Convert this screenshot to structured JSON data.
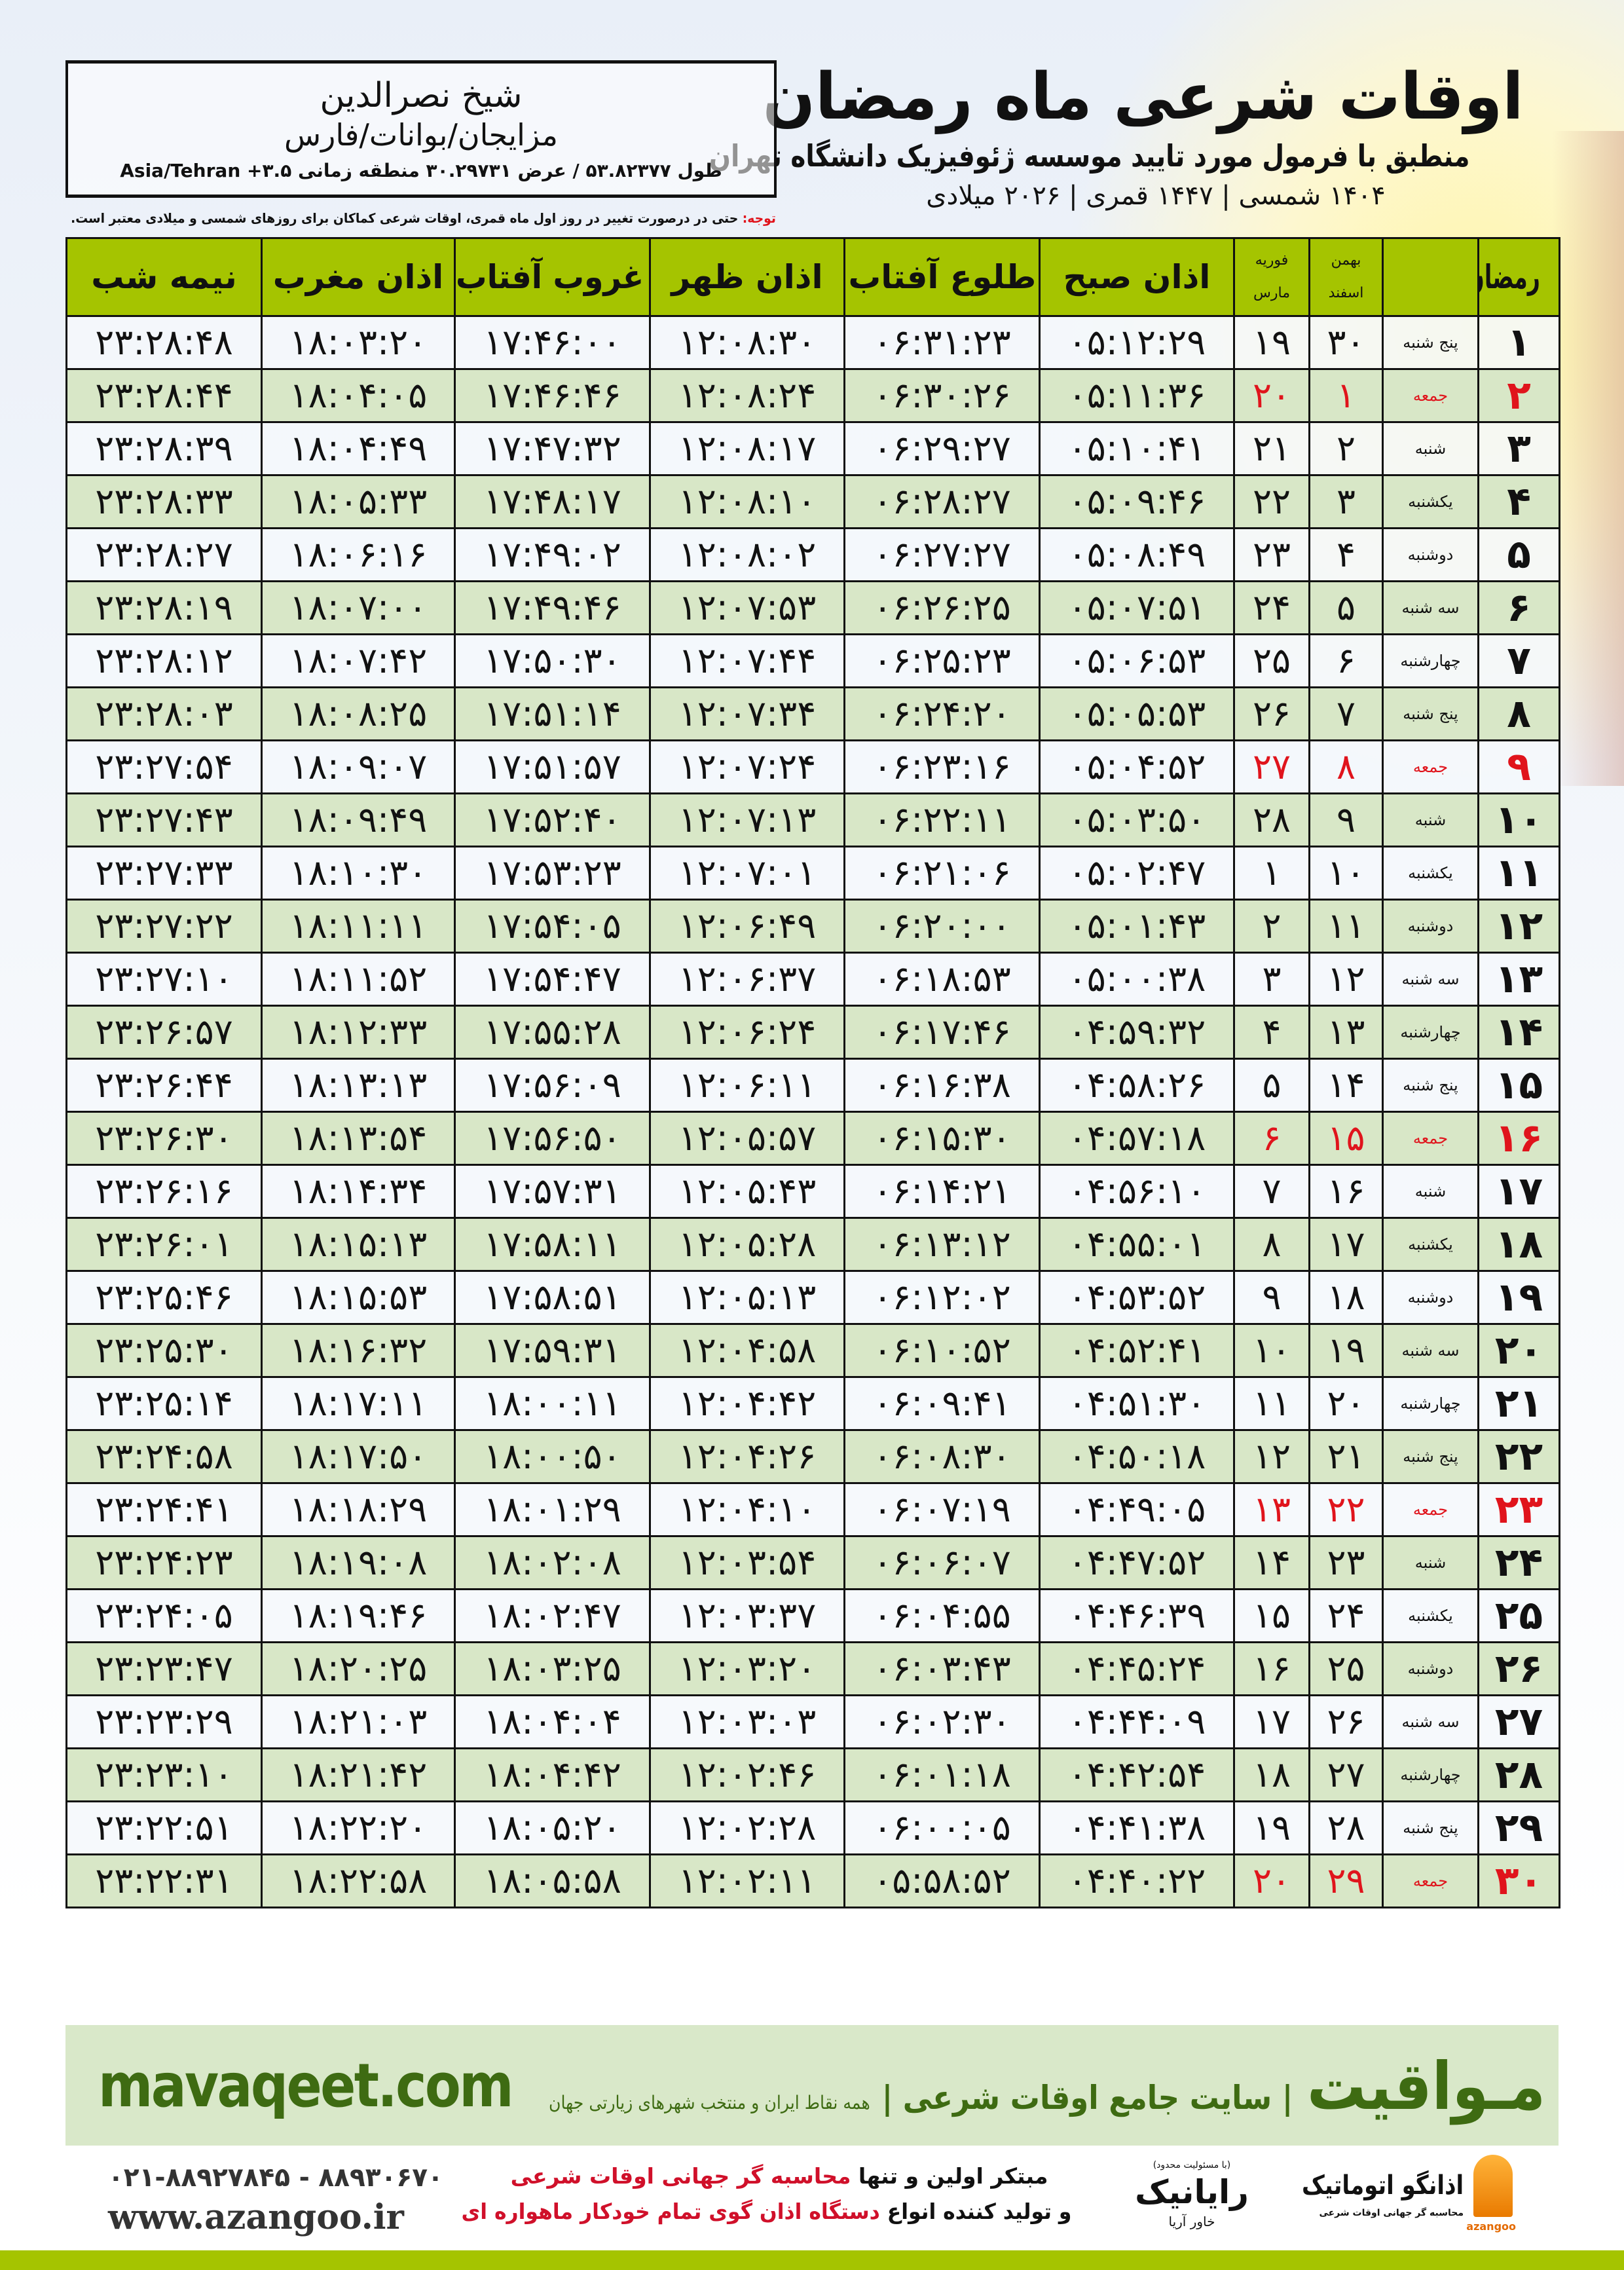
{
  "header": {
    "title": "اوقات شرعی ماه رمضان",
    "subtitle": "منطبق با فرمول مورد تایید موسسه ژئوفیزیک دانشگاه تهران",
    "dates": "۱۴۰۴ شمسی | ۱۴۴۷ قمری | ۲۰۲۶ میلادی"
  },
  "location": {
    "name": "شیخ نصرالدین",
    "region": "مزایجان/بوانات/فارس",
    "coords": "طول ۵۳.۸۲۳۷۷ / عرض ۳۰.۲۹۷۳۱ منطقه زمانی ۳.۵+ Asia/Tehran"
  },
  "note": {
    "label": "توجه:",
    "text": " حتی در درصورت تغییر در روز اول ماه قمری، اوقات شرعی کماکان برای روزهای شمسی و میلادی معتبر است."
  },
  "table": {
    "headers": {
      "ramadan": "رمضان",
      "shamsi_top": "بهمن",
      "shamsi_bottom": "اسفند",
      "miladi_top": "فوریه",
      "miladi_bottom": "مارس",
      "sobh": "اذان صبح",
      "tolu": "طلوع آفتاب",
      "zohr": "اذان ظهر",
      "ghorub": "غروب آفتاب",
      "maghrib": "اذان مغرب",
      "nime": "نیمه شب"
    },
    "holiday_color": "#e0141c",
    "rows": [
      [
        "۱",
        "پنج شنبه",
        "۳۰",
        "۱۹",
        "۰۵:۱۲:۲۹",
        "۰۶:۳۱:۲۳",
        "۱۲:۰۸:۳۰",
        "۱۷:۴۶:۰۰",
        "۱۸:۰۳:۲۰",
        "۲۳:۲۸:۴۸",
        false
      ],
      [
        "۲",
        "جمعه",
        "۱",
        "۲۰",
        "۰۵:۱۱:۳۶",
        "۰۶:۳۰:۲۶",
        "۱۲:۰۸:۲۴",
        "۱۷:۴۶:۴۶",
        "۱۸:۰۴:۰۵",
        "۲۳:۲۸:۴۴",
        true
      ],
      [
        "۳",
        "شنبه",
        "۲",
        "۲۱",
        "۰۵:۱۰:۴۱",
        "۰۶:۲۹:۲۷",
        "۱۲:۰۸:۱۷",
        "۱۷:۴۷:۳۲",
        "۱۸:۰۴:۴۹",
        "۲۳:۲۸:۳۹",
        false
      ],
      [
        "۴",
        "یکشنبه",
        "۳",
        "۲۲",
        "۰۵:۰۹:۴۶",
        "۰۶:۲۸:۲۷",
        "۱۲:۰۸:۱۰",
        "۱۷:۴۸:۱۷",
        "۱۸:۰۵:۳۳",
        "۲۳:۲۸:۳۳",
        false
      ],
      [
        "۵",
        "دوشنبه",
        "۴",
        "۲۳",
        "۰۵:۰۸:۴۹",
        "۰۶:۲۷:۲۷",
        "۱۲:۰۸:۰۲",
        "۱۷:۴۹:۰۲",
        "۱۸:۰۶:۱۶",
        "۲۳:۲۸:۲۷",
        false
      ],
      [
        "۶",
        "سه شنبه",
        "۵",
        "۲۴",
        "۰۵:۰۷:۵۱",
        "۰۶:۲۶:۲۵",
        "۱۲:۰۷:۵۳",
        "۱۷:۴۹:۴۶",
        "۱۸:۰۷:۰۰",
        "۲۳:۲۸:۱۹",
        false
      ],
      [
        "۷",
        "چهارشنبه",
        "۶",
        "۲۵",
        "۰۵:۰۶:۵۳",
        "۰۶:۲۵:۲۳",
        "۱۲:۰۷:۴۴",
        "۱۷:۵۰:۳۰",
        "۱۸:۰۷:۴۲",
        "۲۳:۲۸:۱۲",
        false
      ],
      [
        "۸",
        "پنج شنبه",
        "۷",
        "۲۶",
        "۰۵:۰۵:۵۳",
        "۰۶:۲۴:۲۰",
        "۱۲:۰۷:۳۴",
        "۱۷:۵۱:۱۴",
        "۱۸:۰۸:۲۵",
        "۲۳:۲۸:۰۳",
        false
      ],
      [
        "۹",
        "جمعه",
        "۸",
        "۲۷",
        "۰۵:۰۴:۵۲",
        "۰۶:۲۳:۱۶",
        "۱۲:۰۷:۲۴",
        "۱۷:۵۱:۵۷",
        "۱۸:۰۹:۰۷",
        "۲۳:۲۷:۵۴",
        true
      ],
      [
        "۱۰",
        "شنبه",
        "۹",
        "۲۸",
        "۰۵:۰۳:۵۰",
        "۰۶:۲۲:۱۱",
        "۱۲:۰۷:۱۳",
        "۱۷:۵۲:۴۰",
        "۱۸:۰۹:۴۹",
        "۲۳:۲۷:۴۳",
        false
      ],
      [
        "۱۱",
        "یکشنبه",
        "۱۰",
        "۱",
        "۰۵:۰۲:۴۷",
        "۰۶:۲۱:۰۶",
        "۱۲:۰۷:۰۱",
        "۱۷:۵۳:۲۳",
        "۱۸:۱۰:۳۰",
        "۲۳:۲۷:۳۳",
        false
      ],
      [
        "۱۲",
        "دوشنبه",
        "۱۱",
        "۲",
        "۰۵:۰۱:۴۳",
        "۰۶:۲۰:۰۰",
        "۱۲:۰۶:۴۹",
        "۱۷:۵۴:۰۵",
        "۱۸:۱۱:۱۱",
        "۲۳:۲۷:۲۲",
        false
      ],
      [
        "۱۳",
        "سه شنبه",
        "۱۲",
        "۳",
        "۰۵:۰۰:۳۸",
        "۰۶:۱۸:۵۳",
        "۱۲:۰۶:۳۷",
        "۱۷:۵۴:۴۷",
        "۱۸:۱۱:۵۲",
        "۲۳:۲۷:۱۰",
        false
      ],
      [
        "۱۴",
        "چهارشنبه",
        "۱۳",
        "۴",
        "۰۴:۵۹:۳۲",
        "۰۶:۱۷:۴۶",
        "۱۲:۰۶:۲۴",
        "۱۷:۵۵:۲۸",
        "۱۸:۱۲:۳۳",
        "۲۳:۲۶:۵۷",
        false
      ],
      [
        "۱۵",
        "پنج شنبه",
        "۱۴",
        "۵",
        "۰۴:۵۸:۲۶",
        "۰۶:۱۶:۳۸",
        "۱۲:۰۶:۱۱",
        "۱۷:۵۶:۰۹",
        "۱۸:۱۳:۱۳",
        "۲۳:۲۶:۴۴",
        false
      ],
      [
        "۱۶",
        "جمعه",
        "۱۵",
        "۶",
        "۰۴:۵۷:۱۸",
        "۰۶:۱۵:۳۰",
        "۱۲:۰۵:۵۷",
        "۱۷:۵۶:۵۰",
        "۱۸:۱۳:۵۴",
        "۲۳:۲۶:۳۰",
        true
      ],
      [
        "۱۷",
        "شنبه",
        "۱۶",
        "۷",
        "۰۴:۵۶:۱۰",
        "۰۶:۱۴:۲۱",
        "۱۲:۰۵:۴۳",
        "۱۷:۵۷:۳۱",
        "۱۸:۱۴:۳۴",
        "۲۳:۲۶:۱۶",
        false
      ],
      [
        "۱۸",
        "یکشنبه",
        "۱۷",
        "۸",
        "۰۴:۵۵:۰۱",
        "۰۶:۱۳:۱۲",
        "۱۲:۰۵:۲۸",
        "۱۷:۵۸:۱۱",
        "۱۸:۱۵:۱۳",
        "۲۳:۲۶:۰۱",
        false
      ],
      [
        "۱۹",
        "دوشنبه",
        "۱۸",
        "۹",
        "۰۴:۵۳:۵۲",
        "۰۶:۱۲:۰۲",
        "۱۲:۰۵:۱۳",
        "۱۷:۵۸:۵۱",
        "۱۸:۱۵:۵۳",
        "۲۳:۲۵:۴۶",
        false
      ],
      [
        "۲۰",
        "سه شنبه",
        "۱۹",
        "۱۰",
        "۰۴:۵۲:۴۱",
        "۰۶:۱۰:۵۲",
        "۱۲:۰۴:۵۸",
        "۱۷:۵۹:۳۱",
        "۱۸:۱۶:۳۲",
        "۲۳:۲۵:۳۰",
        false
      ],
      [
        "۲۱",
        "چهارشنبه",
        "۲۰",
        "۱۱",
        "۰۴:۵۱:۳۰",
        "۰۶:۰۹:۴۱",
        "۱۲:۰۴:۴۲",
        "۱۸:۰۰:۱۱",
        "۱۸:۱۷:۱۱",
        "۲۳:۲۵:۱۴",
        false
      ],
      [
        "۲۲",
        "پنج شنبه",
        "۲۱",
        "۱۲",
        "۰۴:۵۰:۱۸",
        "۰۶:۰۸:۳۰",
        "۱۲:۰۴:۲۶",
        "۱۸:۰۰:۵۰",
        "۱۸:۱۷:۵۰",
        "۲۳:۲۴:۵۸",
        false
      ],
      [
        "۲۳",
        "جمعه",
        "۲۲",
        "۱۳",
        "۰۴:۴۹:۰۵",
        "۰۶:۰۷:۱۹",
        "۱۲:۰۴:۱۰",
        "۱۸:۰۱:۲۹",
        "۱۸:۱۸:۲۹",
        "۲۳:۲۴:۴۱",
        true
      ],
      [
        "۲۴",
        "شنبه",
        "۲۳",
        "۱۴",
        "۰۴:۴۷:۵۲",
        "۰۶:۰۶:۰۷",
        "۱۲:۰۳:۵۴",
        "۱۸:۰۲:۰۸",
        "۱۸:۱۹:۰۸",
        "۲۳:۲۴:۲۳",
        false
      ],
      [
        "۲۵",
        "یکشنبه",
        "۲۴",
        "۱۵",
        "۰۴:۴۶:۳۹",
        "۰۶:۰۴:۵۵",
        "۱۲:۰۳:۳۷",
        "۱۸:۰۲:۴۷",
        "۱۸:۱۹:۴۶",
        "۲۳:۲۴:۰۵",
        false
      ],
      [
        "۲۶",
        "دوشنبه",
        "۲۵",
        "۱۶",
        "۰۴:۴۵:۲۴",
        "۰۶:۰۳:۴۳",
        "۱۲:۰۳:۲۰",
        "۱۸:۰۳:۲۵",
        "۱۸:۲۰:۲۵",
        "۲۳:۲۳:۴۷",
        false
      ],
      [
        "۲۷",
        "سه شنبه",
        "۲۶",
        "۱۷",
        "۰۴:۴۴:۰۹",
        "۰۶:۰۲:۳۰",
        "۱۲:۰۳:۰۳",
        "۱۸:۰۴:۰۴",
        "۱۸:۲۱:۰۳",
        "۲۳:۲۳:۲۹",
        false
      ],
      [
        "۲۸",
        "چهارشنبه",
        "۲۷",
        "۱۸",
        "۰۴:۴۲:۵۴",
        "۰۶:۰۱:۱۸",
        "۱۲:۰۲:۴۶",
        "۱۸:۰۴:۴۲",
        "۱۸:۲۱:۴۲",
        "۲۳:۲۳:۱۰",
        false
      ],
      [
        "۲۹",
        "پنج شنبه",
        "۲۸",
        "۱۹",
        "۰۴:۴۱:۳۸",
        "۰۶:۰۰:۰۵",
        "۱۲:۰۲:۲۸",
        "۱۸:۰۵:۲۰",
        "۱۸:۲۲:۲۰",
        "۲۳:۲۲:۵۱",
        false
      ],
      [
        "۳۰",
        "جمعه",
        "۲۹",
        "۲۰",
        "۰۴:۴۰:۲۲",
        "۰۵:۵۸:۵۲",
        "۱۲:۰۲:۱۱",
        "۱۸:۰۵:۵۸",
        "۱۸:۲۲:۵۸",
        "۲۳:۲۲:۳۱",
        true
      ]
    ]
  },
  "footer": {
    "site_url": "mavaqeet.com",
    "brand": "مـواقیت",
    "brand_tag": "| سایت جامع اوقات شرعی |",
    "brand_sub": "همه نقاط ایران و منتخب شهرهای زیارتی جهان",
    "phone": "۰۲۱-۸۸۹۲۷۸۴۵ - ۸۸۹۳۰۶۷۰",
    "azangoo_url": "www.azangoo.ir",
    "promo1_a": "مبتکر اولین و تنها ",
    "promo1_b": "محاسبه گر جهانی اوقات شرعی",
    "promo2_a": "و تولید کننده انواع ",
    "promo2_b": "دستگاه اذان گوی تمام خودکار ماهواره ای",
    "rayanik_note": "(با مسئولیت محدود)",
    "rayanik": "رایانیک",
    "rayanik_r": "ر",
    "rayanik_sub": "خاور آریا",
    "azangoo_name": "اذانگو اتوماتیک",
    "azangoo_sub": "محاسبه گر جهانی اوقات شرعی",
    "azangoo_en": "azangoo",
    "accent_green": "#3e6b12",
    "header_green": "#a5c400"
  }
}
